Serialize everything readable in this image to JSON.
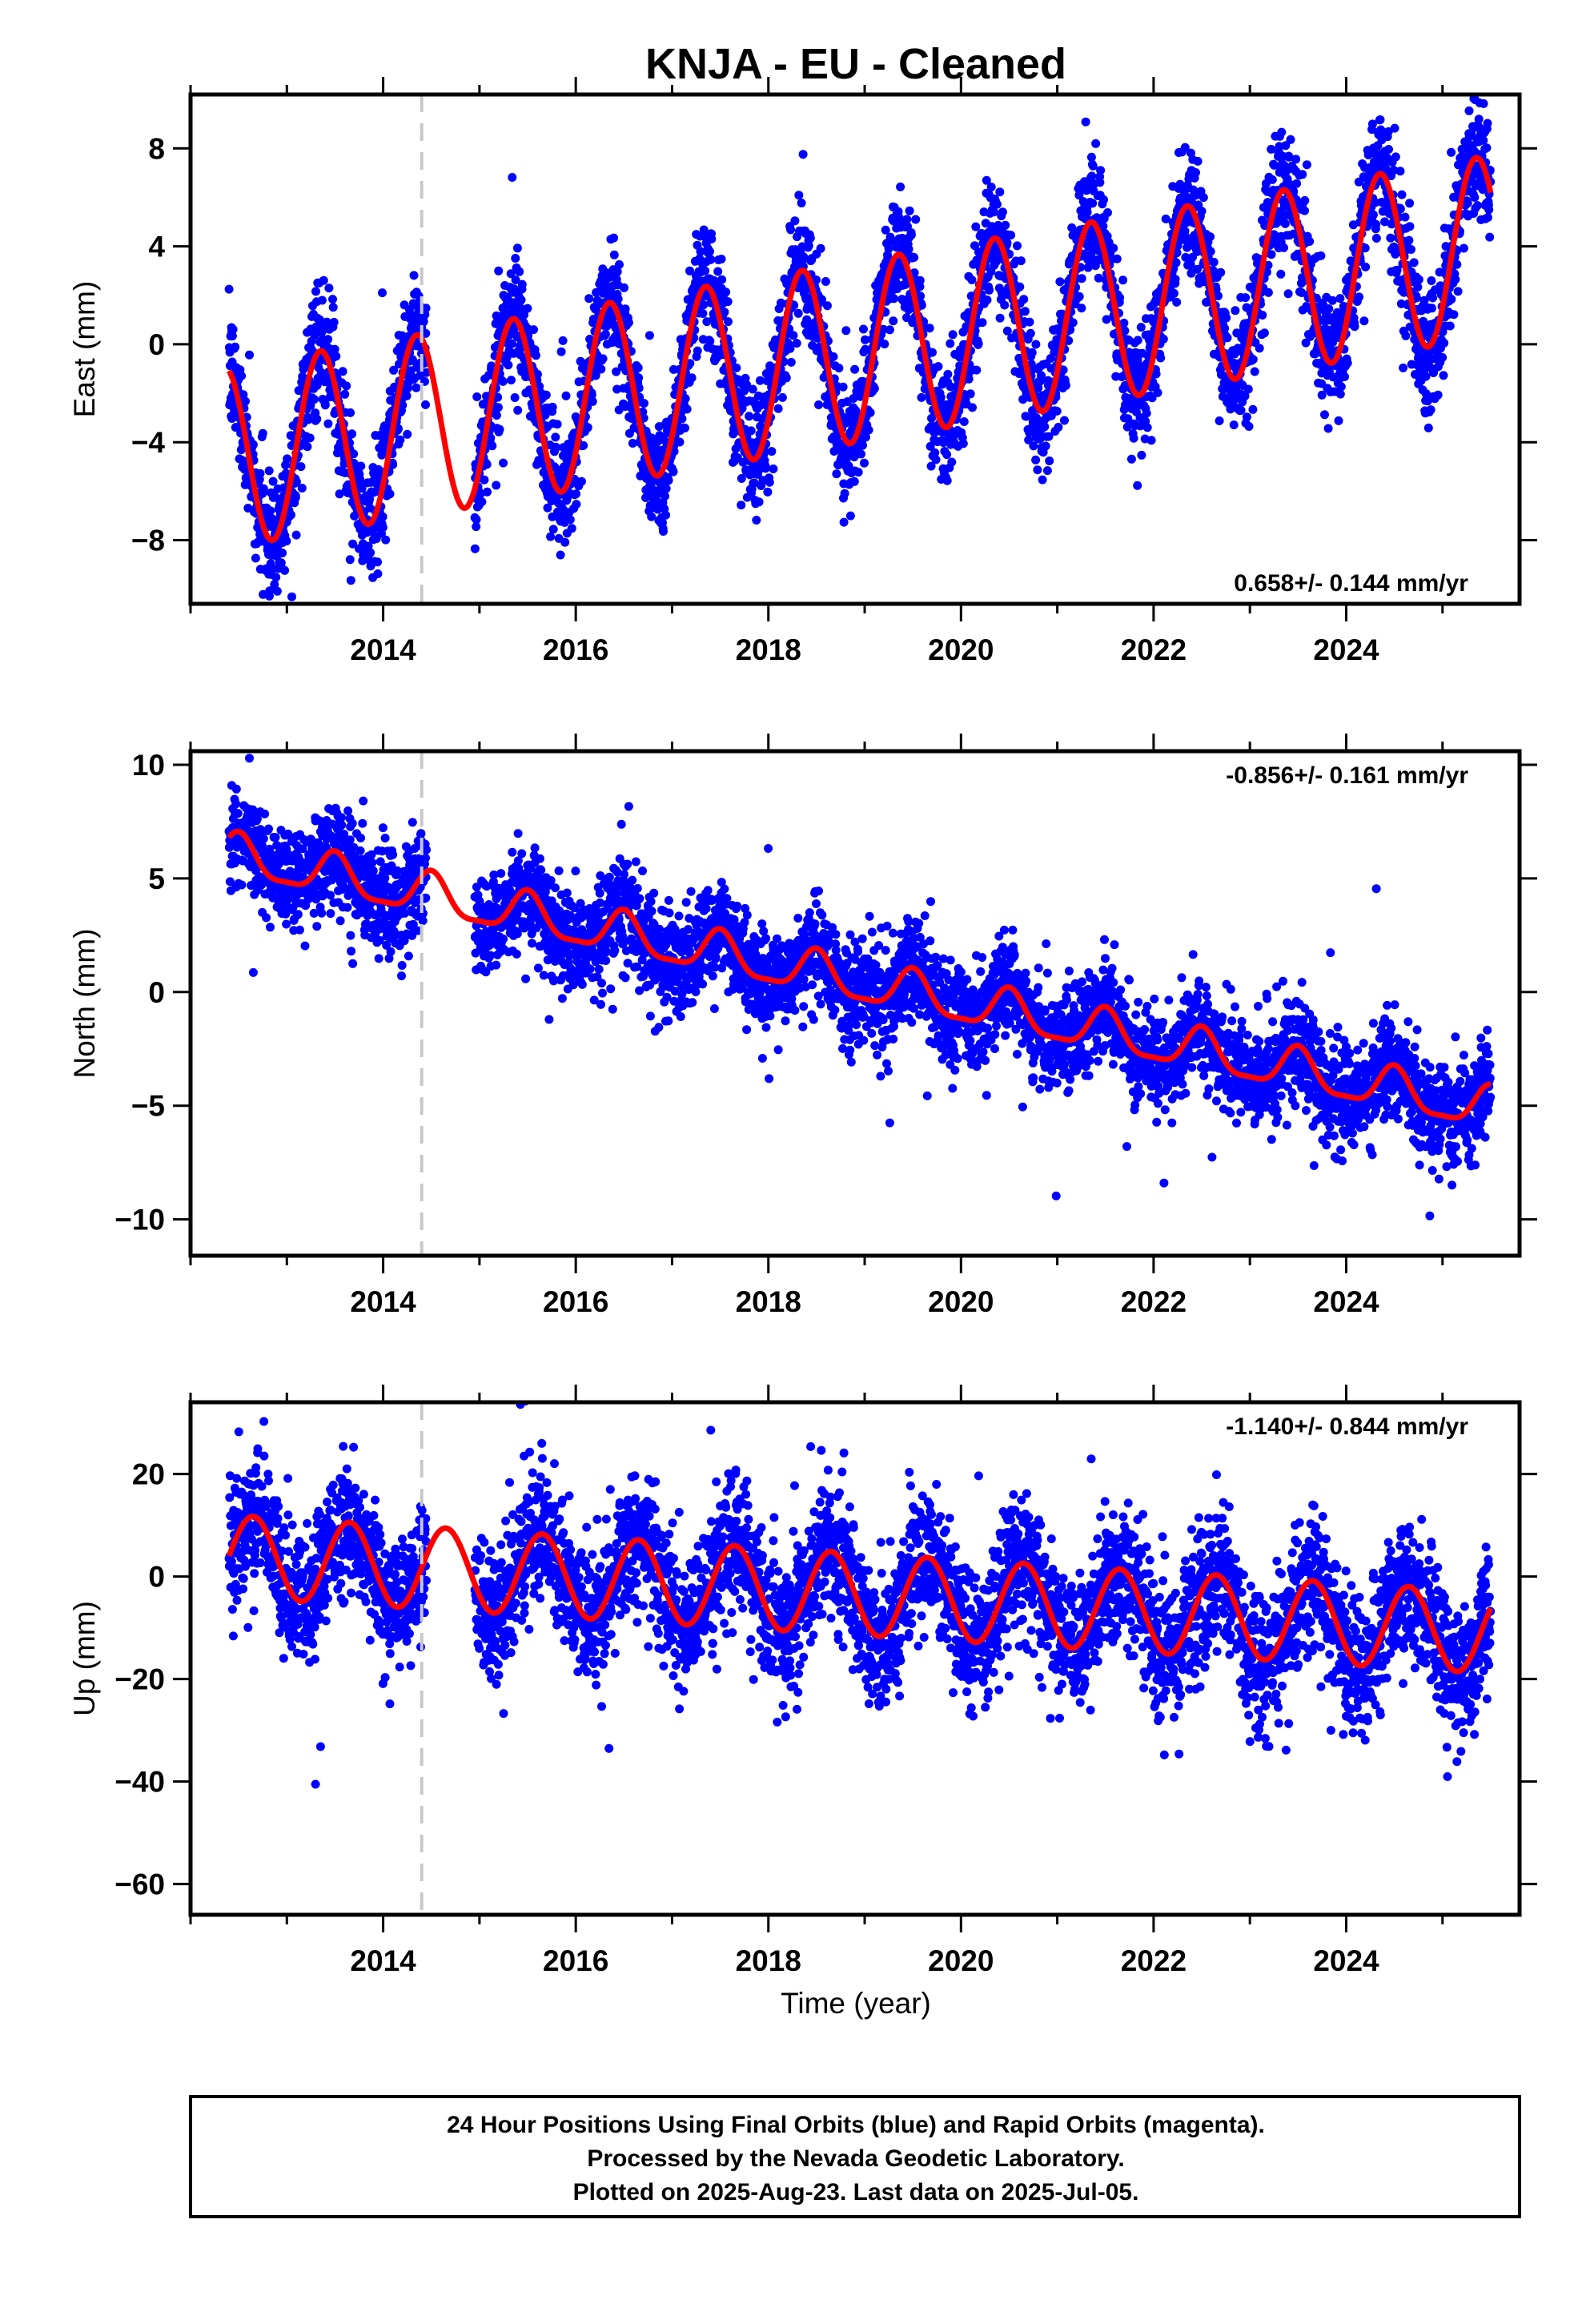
{
  "figure": {
    "title": "KNJA  - EU - Cleaned",
    "xlabel": "Time (year)",
    "footer": [
      "24 Hour Positions Using Final Orbits (blue) and Rapid Orbits (magenta).",
      "Processed by the Nevada Geodetic Laboratory.",
      "Plotted on 2025-Aug-23. Last data on 2025-Jul-05."
    ],
    "colors": {
      "points": "#0000ff",
      "model": "#ff0000",
      "marker_line": "#c8c8c8",
      "frame": "#000000"
    }
  },
  "chart_data": [
    {
      "type": "scatter",
      "ylabel": "East (mm)",
      "rate_label": "0.658+/- 0.144 mm/yr",
      "rate_position": "bottom-right",
      "xlim": [
        2012.0,
        2025.8
      ],
      "ylim": [
        -10.6,
        10.2
      ],
      "xticks": [
        2014,
        2016,
        2018,
        2020,
        2022,
        2024
      ],
      "yticks": [
        8,
        4,
        0,
        -4,
        -8
      ],
      "ytick_labels": [
        "8",
        "4",
        "0",
        "−4",
        "−8"
      ],
      "equipment_change_year": 2014.4,
      "data_start": 2012.4,
      "data_end": 2025.5,
      "gap": [
        2014.45,
        2014.95
      ],
      "model": {
        "ref_year": 2012.4,
        "offset": -4.6,
        "rate": 0.658,
        "annual_amp": 3.7,
        "annual_peak": 0.35,
        "semiannual_amp": 0.0,
        "noise_sd": 1.2
      },
      "grid": false,
      "legend": "none"
    },
    {
      "type": "scatter",
      "ylabel": "North (mm)",
      "rate_label": "-0.856+/- 0.161 mm/yr",
      "rate_position": "top-right",
      "xlim": [
        2012.0,
        2025.8
      ],
      "ylim": [
        -11.6,
        10.6
      ],
      "xticks": [
        2014,
        2016,
        2018,
        2020,
        2022,
        2024
      ],
      "yticks": [
        10,
        5,
        0,
        -5,
        -10
      ],
      "ytick_labels": [
        "10",
        "5",
        "0",
        "−5",
        "−10"
      ],
      "equipment_change_year": 2014.4,
      "data_start": 2012.4,
      "data_end": 2025.5,
      "gap": [
        2014.45,
        2014.95
      ],
      "model": {
        "ref_year": 2012.4,
        "offset": 6.0,
        "rate": -0.856,
        "annual_amp": 0.9,
        "annual_peak": 0.5,
        "semiannual_amp": 0.25,
        "noise_sd": 1.1
      },
      "grid": false,
      "legend": "none"
    },
    {
      "type": "scatter",
      "ylabel": "Up (mm)",
      "rate_label": "-1.140+/- 0.844 mm/yr",
      "rate_position": "top-right",
      "xlim": [
        2012.0,
        2025.8
      ],
      "ylim": [
        -66,
        34
      ],
      "xticks": [
        2014,
        2016,
        2018,
        2020,
        2022,
        2024
      ],
      "yticks": [
        20,
        0,
        -20,
        -40,
        -60
      ],
      "ytick_labels": [
        "20",
        "0",
        "−20",
        "−40",
        "−60"
      ],
      "equipment_change_year": 2014.4,
      "data_start": 2012.4,
      "data_end": 2025.5,
      "gap": [
        2014.45,
        2014.95
      ],
      "model": {
        "ref_year": 2012.4,
        "offset": 4.0,
        "rate": -1.14,
        "annual_amp": 8.0,
        "annual_peak": 0.65,
        "semiannual_amp": 0.0,
        "noise_sd": 6.5
      },
      "grid": false,
      "legend": "none"
    }
  ]
}
